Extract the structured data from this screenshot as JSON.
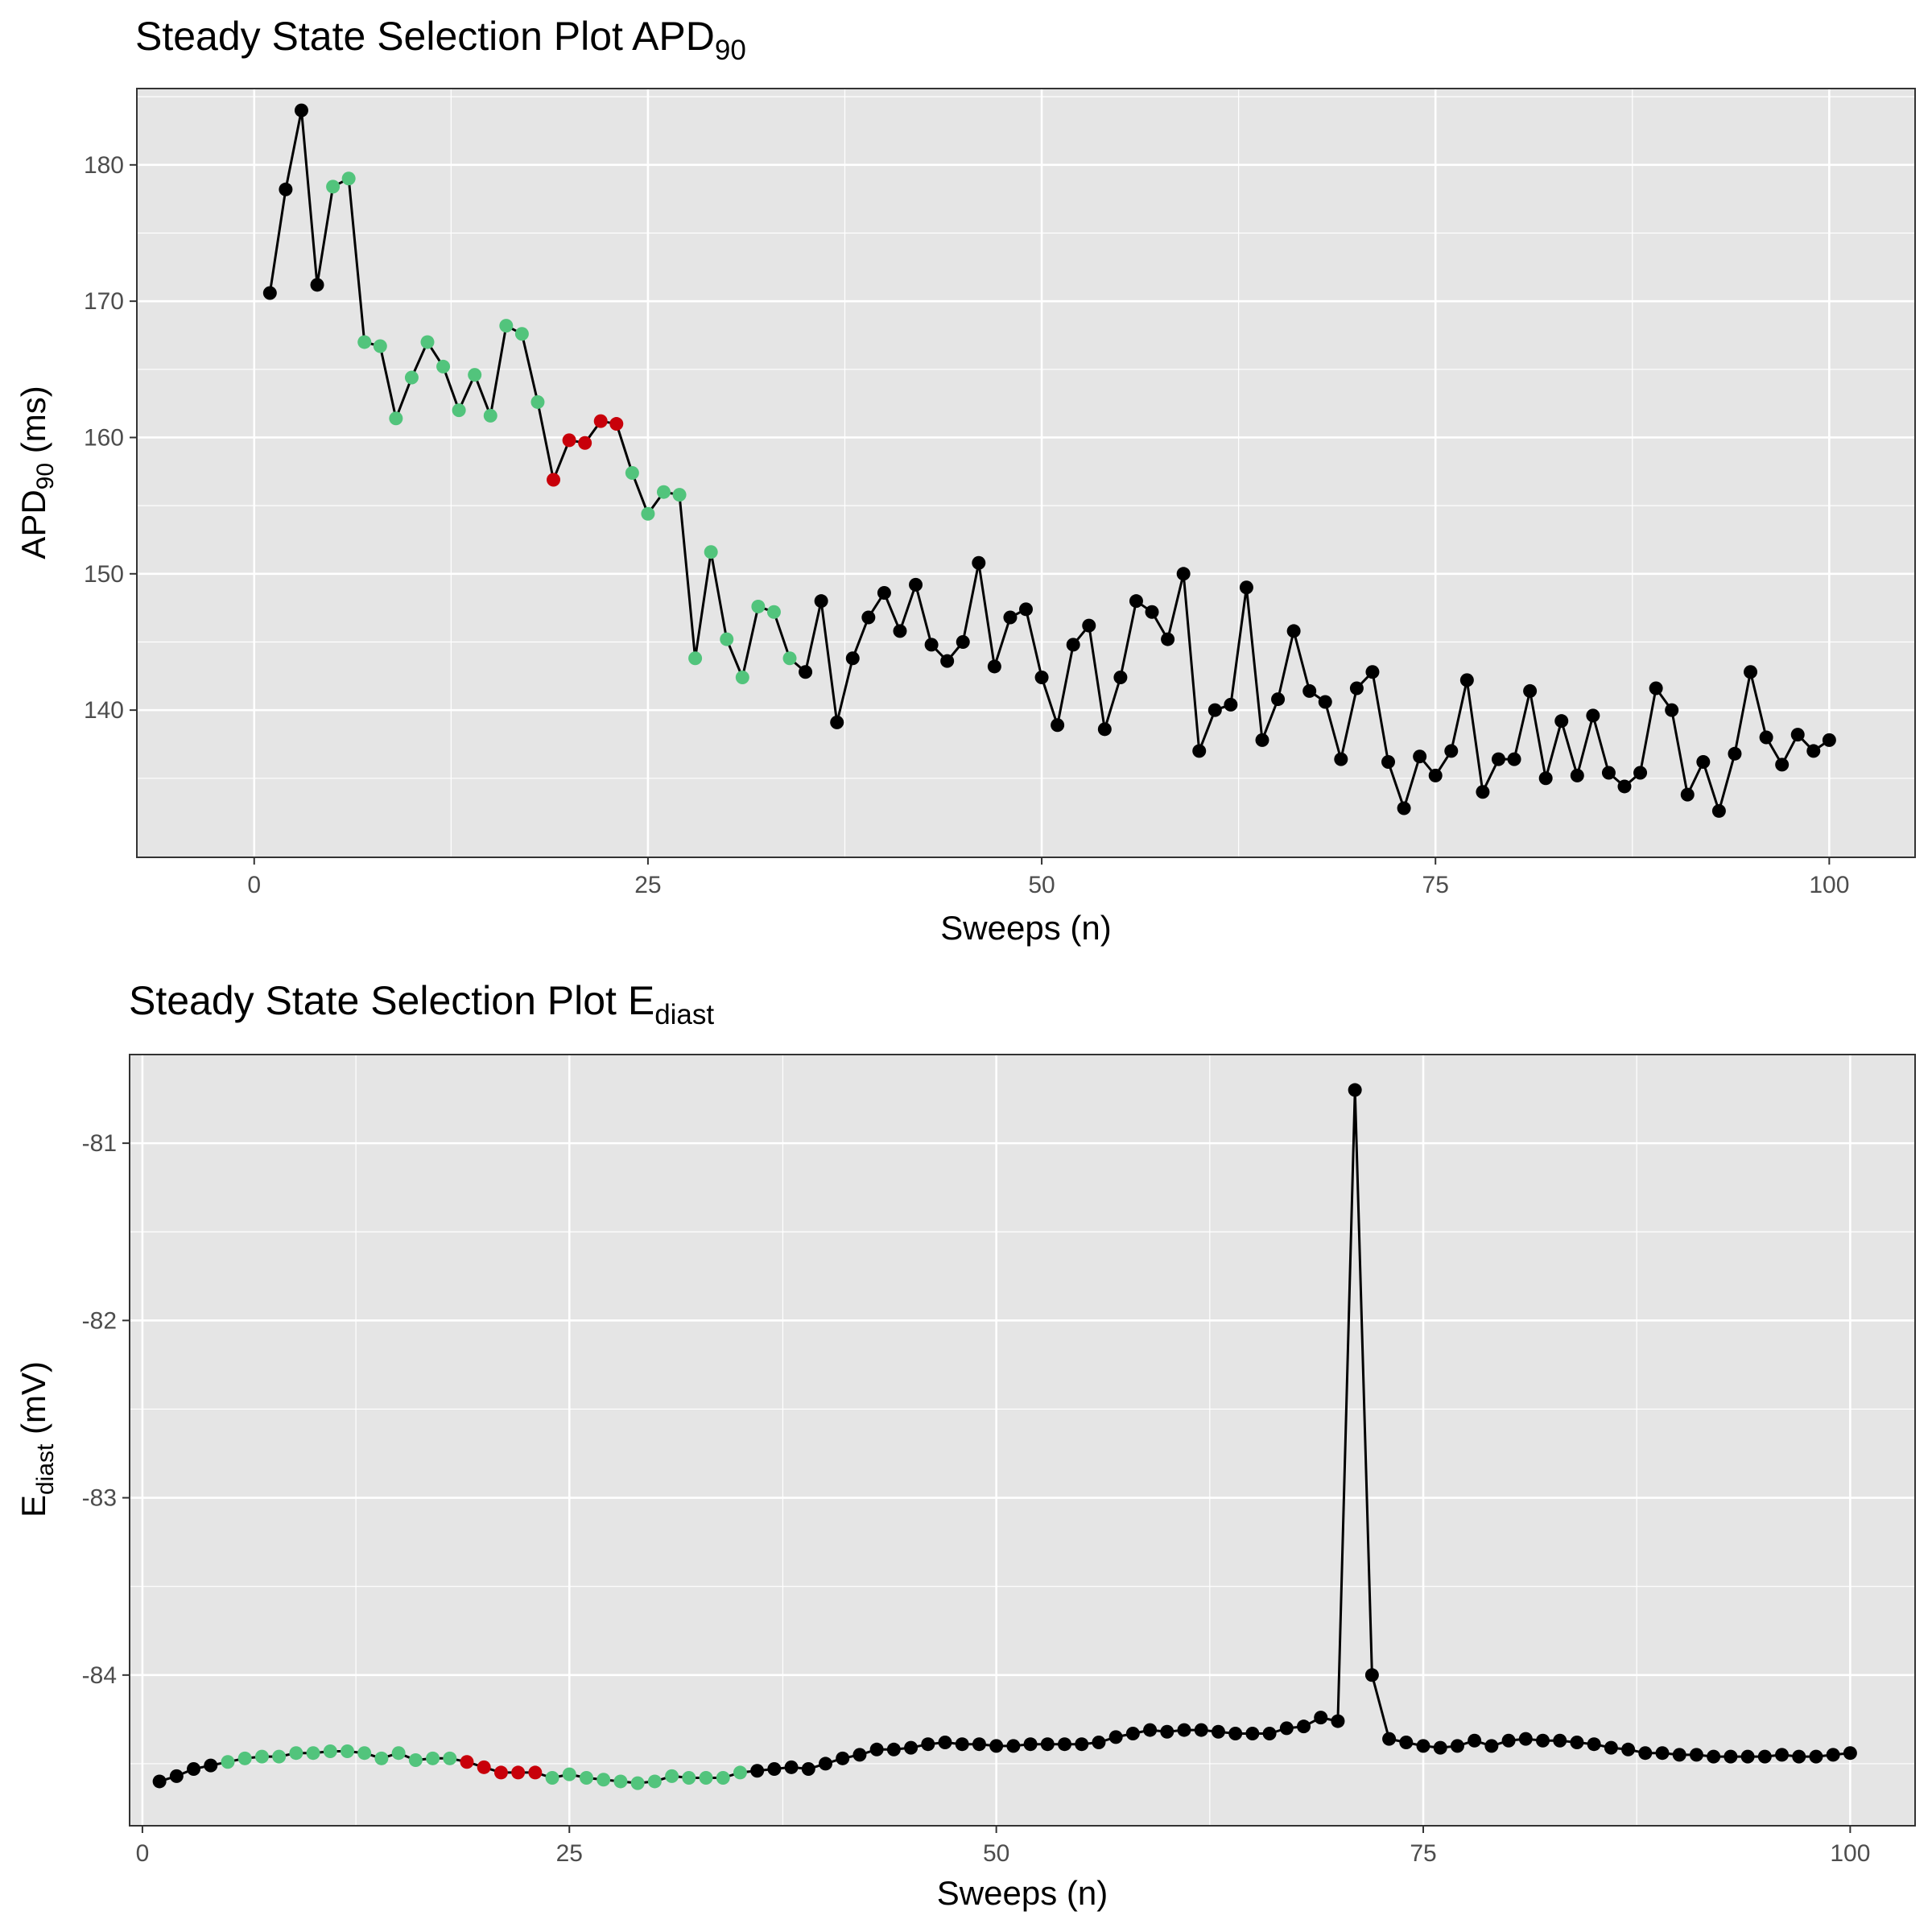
{
  "figure": {
    "background": "#ffffff",
    "panel_background": "#e5e5e5",
    "grid_color": "#ffffff",
    "colors": {
      "default": "#000000",
      "green": "#52c47c",
      "red": "#c8000a",
      "line": "#000000"
    }
  },
  "chart_data": [
    {
      "type": "line",
      "title": "Steady State Selection Plot APD",
      "title_sub": "90",
      "xlabel": "Sweeps (n)",
      "ylabel": "APD",
      "ylabel_sub": "90",
      "ylabel_suffix": " (ms)",
      "xlim": [
        -7.45,
        105.45
      ],
      "ylim": [
        129.2,
        185.6
      ],
      "x_ticks": [
        0,
        25,
        50,
        75,
        100
      ],
      "x_tick_labels": [
        "0",
        "25",
        "50",
        "75",
        "100"
      ],
      "y_ticks": [
        140,
        150,
        160,
        170,
        180
      ],
      "y_tick_labels": [
        "140",
        "150",
        "160",
        "170",
        "180"
      ],
      "grid": true,
      "series": [
        {
          "x": [
            1,
            2,
            3,
            4,
            5,
            6,
            7,
            8,
            9,
            10,
            11,
            12,
            13,
            14,
            15,
            16,
            17,
            18,
            19,
            20,
            21,
            22,
            23,
            24,
            25,
            26,
            27,
            28,
            29,
            30,
            31,
            32,
            33,
            34,
            35,
            36,
            37,
            38,
            39,
            40,
            41,
            42,
            43,
            44,
            45,
            46,
            47,
            48,
            49,
            50,
            51,
            52,
            53,
            54,
            55,
            56,
            57,
            58,
            59,
            60,
            61,
            62,
            63,
            64,
            65,
            66,
            67,
            68,
            69,
            70,
            71,
            72,
            73,
            74,
            75,
            76,
            77,
            78,
            79,
            80,
            81,
            82,
            83,
            84,
            85,
            86,
            87,
            88,
            89,
            90,
            91,
            92,
            93,
            94,
            95,
            96,
            97,
            98,
            99,
            100
          ],
          "y": [
            170.6,
            178.2,
            184.0,
            171.2,
            178.4,
            179.0,
            167.0,
            166.7,
            161.4,
            164.4,
            167.0,
            165.2,
            162.0,
            164.6,
            161.6,
            168.2,
            167.6,
            162.6,
            156.9,
            159.8,
            159.6,
            161.2,
            161.0,
            157.4,
            154.4,
            156.0,
            155.8,
            143.8,
            151.6,
            145.2,
            142.4,
            147.6,
            147.2,
            143.8,
            142.8,
            148.0,
            139.1,
            143.8,
            146.8,
            148.6,
            145.8,
            149.2,
            144.8,
            143.6,
            145.0,
            150.8,
            143.2,
            146.8,
            147.4,
            142.4,
            138.9,
            144.8,
            146.2,
            138.6,
            142.4,
            148.0,
            147.2,
            145.2,
            150.0,
            137.0,
            140.0,
            140.4,
            149.0,
            137.8,
            140.8,
            145.8,
            141.4,
            140.6,
            136.4,
            141.6,
            142.8,
            136.2,
            132.8,
            136.6,
            135.2,
            137.0,
            142.2,
            134.0,
            136.4,
            136.4,
            141.4,
            135.0,
            139.2,
            135.2,
            139.6,
            135.4,
            134.4,
            135.4,
            141.6,
            140.0,
            133.8,
            136.2,
            132.6,
            136.8,
            142.8,
            138.0,
            136.0,
            138.2,
            137.0,
            137.8
          ],
          "point_colors": [
            "default",
            "default",
            "default",
            "default",
            "green",
            "green",
            "green",
            "green",
            "green",
            "green",
            "green",
            "green",
            "green",
            "green",
            "green",
            "green",
            "green",
            "green",
            "red",
            "red",
            "red",
            "red",
            "red",
            "green",
            "green",
            "green",
            "green",
            "green",
            "green",
            "green",
            "green",
            "green",
            "green",
            "green",
            "default",
            "default",
            "default",
            "default",
            "default",
            "default",
            "default",
            "default",
            "default",
            "default",
            "default",
            "default",
            "default",
            "default",
            "default",
            "default",
            "default",
            "default",
            "default",
            "default",
            "default",
            "default",
            "default",
            "default",
            "default",
            "default",
            "default",
            "default",
            "default",
            "default",
            "default",
            "default",
            "default",
            "default",
            "default",
            "default",
            "default",
            "default",
            "default",
            "default",
            "default",
            "default",
            "default",
            "default",
            "default",
            "default",
            "default",
            "default",
            "default",
            "default",
            "default",
            "default",
            "default",
            "default",
            "default",
            "default",
            "default",
            "default",
            "default",
            "default",
            "default",
            "default",
            "default",
            "default",
            "default",
            "default"
          ]
        }
      ]
    },
    {
      "type": "line",
      "title": "Steady State Selection Plot E",
      "title_sub": "diast",
      "xlabel": "Sweeps (n)",
      "ylabel": "E",
      "ylabel_sub": "diast",
      "ylabel_suffix": " (mV)",
      "xlim": [
        -0.75,
        103.8
      ],
      "ylim": [
        -84.85,
        -80.5
      ],
      "x_ticks": [
        0,
        25,
        50,
        75,
        100
      ],
      "x_tick_labels": [
        "0",
        "25",
        "50",
        "75",
        "100"
      ],
      "y_ticks": [
        -81,
        -82,
        -83,
        -84
      ],
      "y_tick_labels": [
        "-81",
        "-82",
        "-83",
        "-84"
      ],
      "grid": true,
      "series": [
        {
          "x": [
            1,
            2,
            3,
            4,
            5,
            6,
            7,
            8,
            9,
            10,
            11,
            12,
            13,
            14,
            15,
            16,
            17,
            18,
            19,
            20,
            21,
            22,
            23,
            24,
            25,
            26,
            27,
            28,
            29,
            30,
            31,
            32,
            33,
            34,
            35,
            36,
            37,
            38,
            39,
            40,
            41,
            42,
            43,
            44,
            45,
            46,
            47,
            48,
            49,
            50,
            51,
            52,
            53,
            54,
            55,
            56,
            57,
            58,
            59,
            60,
            61,
            62,
            63,
            64,
            65,
            66,
            67,
            68,
            69,
            70,
            71,
            72,
            73,
            74,
            75,
            76,
            77,
            78,
            79,
            80,
            81,
            82,
            83,
            84,
            85,
            86,
            87,
            88,
            89,
            90,
            91,
            92,
            93,
            94,
            95,
            96,
            97,
            98,
            99,
            100
          ],
          "y": [
            -84.6,
            -84.57,
            -84.53,
            -84.51,
            -84.49,
            -84.47,
            -84.46,
            -84.46,
            -84.44,
            -84.44,
            -84.43,
            -84.43,
            -84.44,
            -84.47,
            -84.44,
            -84.48,
            -84.47,
            -84.47,
            -84.49,
            -84.52,
            -84.55,
            -84.55,
            -84.55,
            -84.58,
            -84.56,
            -84.58,
            -84.59,
            -84.6,
            -84.61,
            -84.6,
            -84.57,
            -84.58,
            -84.58,
            -84.58,
            -84.55,
            -84.54,
            -84.53,
            -84.52,
            -84.53,
            -84.5,
            -84.47,
            -84.45,
            -84.42,
            -84.42,
            -84.41,
            -84.39,
            -84.38,
            -84.39,
            -84.39,
            -84.4,
            -84.4,
            -84.39,
            -84.39,
            -84.39,
            -84.39,
            -84.38,
            -84.35,
            -84.33,
            -84.31,
            -84.32,
            -84.31,
            -84.31,
            -84.32,
            -84.33,
            -84.33,
            -84.33,
            -84.3,
            -84.29,
            -84.24,
            -84.26,
            -80.7,
            -84.0,
            -84.36,
            -84.38,
            -84.4,
            -84.41,
            -84.4,
            -84.37,
            -84.4,
            -84.37,
            -84.36,
            -84.37,
            -84.37,
            -84.38,
            -84.39,
            -84.41,
            -84.42,
            -84.44,
            -84.44,
            -84.45,
            -84.45,
            -84.46,
            -84.46,
            -84.46,
            -84.46,
            -84.45,
            -84.46,
            -84.46,
            -84.45,
            -84.44
          ],
          "point_colors": [
            "default",
            "default",
            "default",
            "default",
            "green",
            "green",
            "green",
            "green",
            "green",
            "green",
            "green",
            "green",
            "green",
            "green",
            "green",
            "green",
            "green",
            "green",
            "red",
            "red",
            "red",
            "red",
            "red",
            "green",
            "green",
            "green",
            "green",
            "green",
            "green",
            "green",
            "green",
            "green",
            "green",
            "green",
            "green",
            "default",
            "default",
            "default",
            "default",
            "default",
            "default",
            "default",
            "default",
            "default",
            "default",
            "default",
            "default",
            "default",
            "default",
            "default",
            "default",
            "default",
            "default",
            "default",
            "default",
            "default",
            "default",
            "default",
            "default",
            "default",
            "default",
            "default",
            "default",
            "default",
            "default",
            "default",
            "default",
            "default",
            "default",
            "default",
            "default",
            "default",
            "default",
            "default",
            "default",
            "default",
            "default",
            "default",
            "default",
            "default",
            "default",
            "default",
            "default",
            "default",
            "default",
            "default",
            "default",
            "default",
            "default",
            "default",
            "default",
            "default",
            "default",
            "default",
            "default",
            "default",
            "default",
            "default",
            "default",
            "default"
          ]
        }
      ]
    }
  ]
}
